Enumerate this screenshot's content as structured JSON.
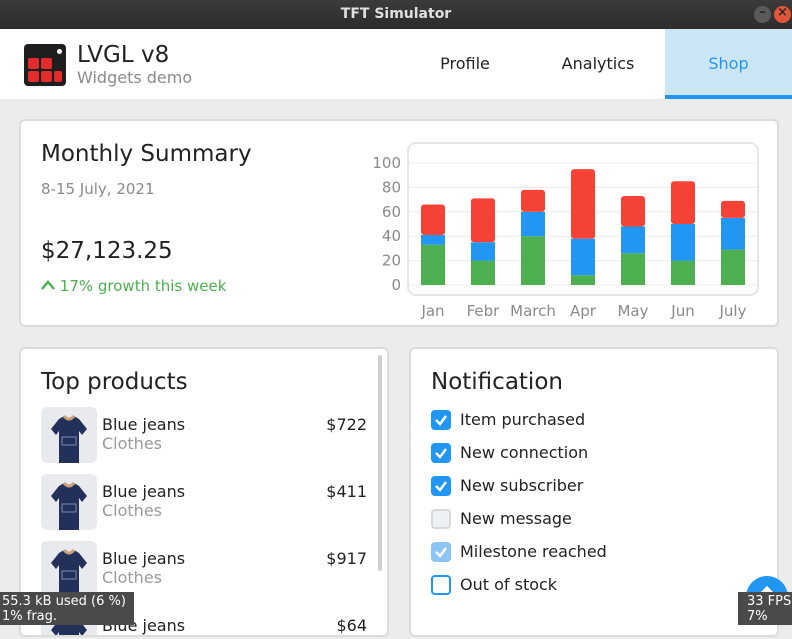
{
  "window": {
    "title": "TFT Simulator"
  },
  "app": {
    "title": "LVGL v8",
    "subtitle": "Widgets demo"
  },
  "tabs": [
    {
      "label": "Profile",
      "active": false
    },
    {
      "label": "Analytics",
      "active": false
    },
    {
      "label": "Shop",
      "active": true
    }
  ],
  "summary": {
    "title": "Monthly Summary",
    "date_range": "8-15 July, 2021",
    "amount": "$27,123.25",
    "growth": "17% growth this week"
  },
  "chart_data": {
    "type": "bar",
    "stacked": true,
    "categories": [
      "Jan",
      "Febr",
      "March",
      "Apr",
      "May",
      "Jun",
      "July"
    ],
    "ylim": [
      0,
      100
    ],
    "yticks": [
      100,
      80,
      60,
      40,
      20,
      0
    ],
    "grid": true,
    "series": [
      {
        "values": [
          33,
          20,
          40,
          8,
          26,
          20,
          29
        ],
        "color": "#4caf50"
      },
      {
        "values": [
          8,
          15,
          20,
          30,
          22,
          30,
          26
        ],
        "color": "#2196f3"
      },
      {
        "values": [
          25,
          36,
          18,
          57,
          25,
          35,
          14
        ],
        "color": "#f44336"
      }
    ]
  },
  "top_products": {
    "title": "Top products",
    "items": [
      {
        "name": "Blue jeans",
        "category": "Clothes",
        "price": "$722"
      },
      {
        "name": "Blue jeans",
        "category": "Clothes",
        "price": "$411"
      },
      {
        "name": "Blue jeans",
        "category": "Clothes",
        "price": "$917"
      },
      {
        "name": "Blue jeans",
        "category": "",
        "price": "$64"
      }
    ]
  },
  "notifications": {
    "title": "Notification",
    "items": [
      {
        "label": "Item purchased",
        "checked": true,
        "state": "on"
      },
      {
        "label": "New connection",
        "checked": true,
        "state": "on"
      },
      {
        "label": "New subscriber",
        "checked": true,
        "state": "on"
      },
      {
        "label": "New message",
        "checked": false,
        "state": "off"
      },
      {
        "label": "Milestone reached",
        "checked": true,
        "state": "dim"
      },
      {
        "label": "Out of stock",
        "checked": false,
        "state": "focused"
      }
    ]
  },
  "overlays": {
    "mem_line1": "55.3 kB used (6 %)",
    "mem_line2": "1% frag.",
    "perf_line1": "33 FPS",
    "perf_line2": "7% CPU"
  },
  "colors": {
    "accent": "#2196f3",
    "green": "#4caf50",
    "red": "#f44336"
  }
}
